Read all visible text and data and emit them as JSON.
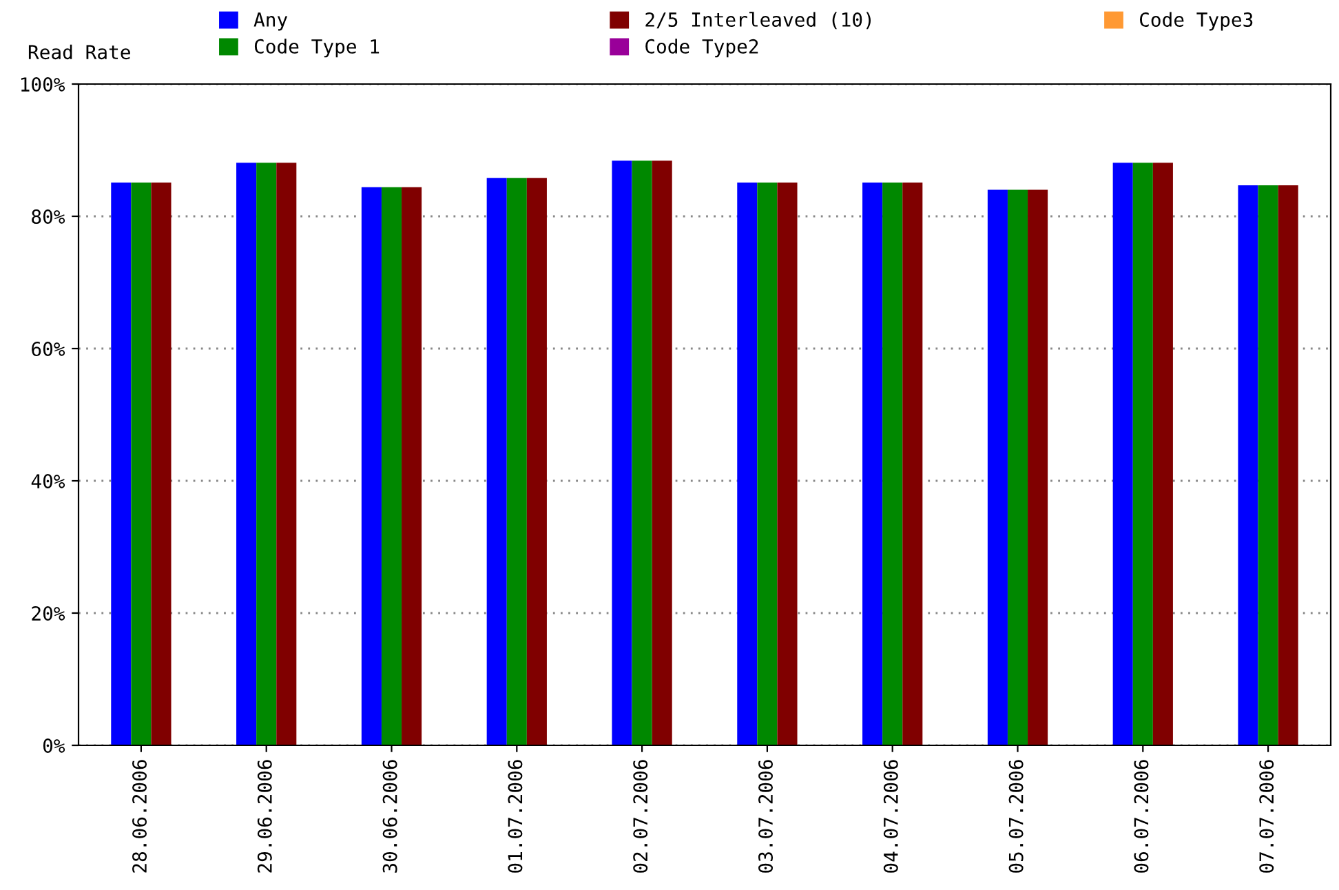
{
  "chart_data": {
    "type": "bar",
    "ylabel": "Read Rate",
    "categories": [
      "28.06.2006",
      "29.06.2006",
      "30.06.2006",
      "01.07.2006",
      "02.07.2006",
      "03.07.2006",
      "04.07.2006",
      "05.07.2006",
      "06.07.2006",
      "07.07.2006"
    ],
    "series": [
      {
        "name": "Any",
        "color": "#0000ff",
        "values": [
          85.1,
          88.1,
          84.4,
          85.8,
          88.4,
          85.1,
          85.1,
          84.0,
          88.1,
          84.7
        ]
      },
      {
        "name": "Code Type 1",
        "color": "#008800",
        "values": [
          85.1,
          88.1,
          84.4,
          85.8,
          88.4,
          85.1,
          85.1,
          84.0,
          88.1,
          84.7
        ]
      },
      {
        "name": "2/5 Interleaved (10)",
        "color": "#800000",
        "values": [
          85.1,
          88.1,
          84.4,
          85.8,
          88.4,
          85.1,
          85.1,
          84.0,
          88.1,
          84.7
        ]
      },
      {
        "name": "Code Type2",
        "color": "#990099",
        "values": [
          null,
          null,
          null,
          null,
          null,
          null,
          null,
          null,
          null,
          null
        ]
      },
      {
        "name": "Code Type3",
        "color": "#ff9933",
        "values": [
          null,
          null,
          null,
          null,
          null,
          null,
          null,
          null,
          null,
          null
        ]
      }
    ],
    "ylim": [
      0,
      100
    ],
    "yticks": [
      {
        "value": 0,
        "label": "0%"
      },
      {
        "value": 20,
        "label": "20%"
      },
      {
        "value": 40,
        "label": "40%"
      },
      {
        "value": 60,
        "label": "60%"
      },
      {
        "value": 80,
        "label": "80%"
      },
      {
        "value": 100,
        "label": "100%"
      }
    ],
    "grid": "y",
    "legend": "top"
  }
}
